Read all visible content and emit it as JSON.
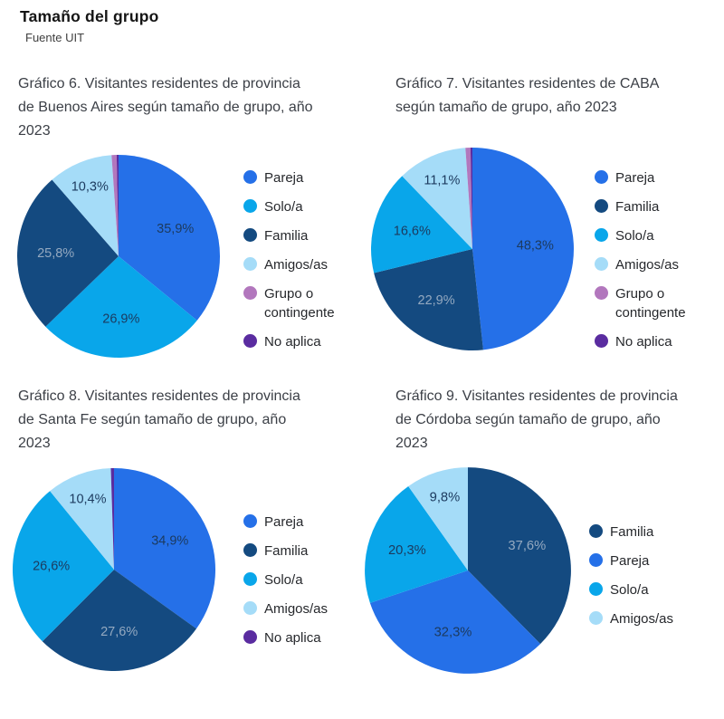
{
  "page": {
    "title": "Tamaño del grupo",
    "source": "Fuente UIT"
  },
  "palette": {
    "pareja": "#2570e8",
    "familia": "#144a80",
    "solo": "#09a6ea",
    "amigos": "#a5dcf8",
    "grupo_o_contingente": "#b277bd",
    "no_aplica": "#5a2ca0",
    "label_dark": "#1c3a5e",
    "label_light": "#94a9c0"
  },
  "chart_data": [
    {
      "type": "pie",
      "title": "Gráfico 6. Visitantes residentes de provincia de Buenos Aires según tamaño de grupo, año 2023",
      "legend_position": "right",
      "slices": [
        {
          "label": "Pareja",
          "value": 35.9,
          "pct_label": "35,9%",
          "color": "#2570e8",
          "label_color": "#1c3a5e"
        },
        {
          "label": "Solo/a",
          "value": 26.9,
          "pct_label": "26,9%",
          "color": "#09a6ea",
          "label_color": "#1c3a5e"
        },
        {
          "label": "Familia",
          "value": 25.8,
          "pct_label": "25,8%",
          "color": "#144a80",
          "label_color": "#94a9c0"
        },
        {
          "label": "Amigos/as",
          "value": 10.3,
          "pct_label": "10,3%",
          "color": "#a5dcf8",
          "label_color": "#1c3a5e"
        },
        {
          "label": "Grupo o contingente",
          "value": 0.8,
          "pct_label": "",
          "color": "#b277bd",
          "label_color": "#1c3a5e"
        },
        {
          "label": "No aplica",
          "value": 0.3,
          "pct_label": "",
          "color": "#5a2ca0",
          "label_color": "#1c3a5e"
        }
      ]
    },
    {
      "type": "pie",
      "title": "Gráfico 7. Visitantes residentes de CABA según tamaño de grupo, año 2023",
      "legend_position": "right",
      "slices": [
        {
          "label": "Pareja",
          "value": 48.3,
          "pct_label": "48,3%",
          "color": "#2570e8",
          "label_color": "#1c3a5e"
        },
        {
          "label": "Familia",
          "value": 22.9,
          "pct_label": "22,9%",
          "color": "#144a80",
          "label_color": "#94a9c0"
        },
        {
          "label": "Solo/a",
          "value": 16.6,
          "pct_label": "16,6%",
          "color": "#09a6ea",
          "label_color": "#1c3a5e"
        },
        {
          "label": "Amigos/as",
          "value": 11.1,
          "pct_label": "11,1%",
          "color": "#a5dcf8",
          "label_color": "#1c3a5e"
        },
        {
          "label": "Grupo o contingente",
          "value": 0.8,
          "pct_label": "",
          "color": "#b277bd",
          "label_color": "#1c3a5e"
        },
        {
          "label": "No aplica",
          "value": 0.3,
          "pct_label": "",
          "color": "#5a2ca0",
          "label_color": "#1c3a5e"
        }
      ]
    },
    {
      "type": "pie",
      "title": "Gráfico 8. Visitantes residentes de provincia de Santa Fe según tamaño de grupo, año 2023",
      "legend_position": "right",
      "slices": [
        {
          "label": "Pareja",
          "value": 34.9,
          "pct_label": "34,9%",
          "color": "#2570e8",
          "label_color": "#1c3a5e"
        },
        {
          "label": "Familia",
          "value": 27.6,
          "pct_label": "27,6%",
          "color": "#144a80",
          "label_color": "#94a9c0"
        },
        {
          "label": "Solo/a",
          "value": 26.6,
          "pct_label": "26,6%",
          "color": "#09a6ea",
          "label_color": "#1c3a5e"
        },
        {
          "label": "Amigos/as",
          "value": 10.4,
          "pct_label": "10,4%",
          "color": "#a5dcf8",
          "label_color": "#1c3a5e"
        },
        {
          "label": "No aplica",
          "value": 0.5,
          "pct_label": "",
          "color": "#5a2ca0",
          "label_color": "#1c3a5e"
        }
      ]
    },
    {
      "type": "pie",
      "title": "Gráfico 9. Visitantes residentes de provincia de Córdoba según tamaño de grupo, año 2023",
      "legend_position": "right",
      "slices": [
        {
          "label": "Familia",
          "value": 37.6,
          "pct_label": "37,6%",
          "color": "#144a80",
          "label_color": "#94a9c0"
        },
        {
          "label": "Pareja",
          "value": 32.3,
          "pct_label": "32,3%",
          "color": "#2570e8",
          "label_color": "#1c3a5e"
        },
        {
          "label": "Solo/a",
          "value": 20.3,
          "pct_label": "20,3%",
          "color": "#09a6ea",
          "label_color": "#1c3a5e"
        },
        {
          "label": "Amigos/as",
          "value": 9.8,
          "pct_label": "9,8%",
          "color": "#a5dcf8",
          "label_color": "#1c3a5e"
        }
      ]
    }
  ]
}
